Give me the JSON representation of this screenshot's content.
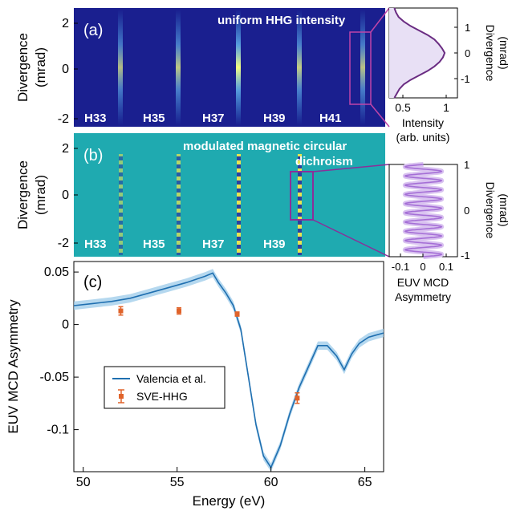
{
  "colors": {
    "spectrum_bg": "#1a1f8f",
    "mcd_bg": "#1faab0",
    "profile_line": "#6a2c82",
    "profile_fill": "#e8e0f5",
    "mcd_profile_line": "#a56fd6",
    "highlight_box": "#c044a8",
    "ref_line": "#1f6fb0",
    "ref_band": "#9ccbea",
    "sve_marker": "#e0632a"
  },
  "panel_a": {
    "tag": "(a)",
    "note": "uniform HHG intensity",
    "ylabel_1": "Divergence",
    "ylabel_2": "(mrad)",
    "yticks": [
      "2",
      "0",
      "-2"
    ],
    "harmonics": [
      "H33",
      "H35",
      "H37",
      "H39",
      "H41"
    ],
    "line_intensity": [
      0.45,
      0.55,
      1.0,
      0.6,
      0.5
    ]
  },
  "panel_a_profile": {
    "xlabel_1": "Intensity",
    "xlabel_2": "(arb. units)",
    "xticks": [
      "0.5",
      "1"
    ],
    "yticks": [
      "1",
      "0",
      "-1"
    ],
    "ylabel_1": "Divergence",
    "ylabel_2": "(mrad)"
  },
  "panel_b": {
    "tag": "(b)",
    "note_1": "modulated magnetic circular",
    "note_2": "dichroism",
    "ylabel_1": "Divergence",
    "ylabel_2": "(mrad)",
    "yticks": [
      "2",
      "0",
      "-2"
    ],
    "harmonics": [
      "H33",
      "H35",
      "H37",
      "H39"
    ]
  },
  "panel_b_profile": {
    "xlabel_1": "EUV MCD",
    "xlabel_2": "Asymmetry",
    "xticks": [
      "-0.1",
      "0",
      "0.1"
    ],
    "yticks": [
      "1",
      "0",
      "-1"
    ],
    "ylabel_1": "Divergence",
    "ylabel_2": "(mrad)"
  },
  "panel_c": {
    "tag": "(c)",
    "xlabel": "Energy (eV)",
    "ylabel": "EUV MCD Asymmetry",
    "xticks": [
      "50",
      "55",
      "60",
      "65"
    ],
    "yticks": [
      "0.05",
      "0",
      "-0.05",
      "-0.1"
    ],
    "legend": [
      "Valencia et al.",
      "SVE-HHG"
    ]
  },
  "chart_data": [
    {
      "type": "heatmap",
      "panel": "a",
      "ylabel": "Divergence (mrad)",
      "ylim": [
        -2.4,
        2.4
      ],
      "categories": [
        "H33",
        "H35",
        "H37",
        "H39",
        "H41"
      ],
      "values": [
        0.45,
        0.55,
        1.0,
        0.6,
        0.5
      ]
    },
    {
      "type": "area",
      "panel": "a-profile",
      "xlabel": "Intensity (arb. units)",
      "ylabel": "Divergence (mrad)",
      "xlim": [
        0.35,
        1.15
      ],
      "ylim": [
        -1.5,
        1.5
      ],
      "x": [
        0.41,
        0.44,
        0.47,
        0.52,
        0.6,
        0.7,
        0.8,
        0.88,
        0.94,
        0.98,
        1.0,
        0.97,
        0.93,
        0.88,
        0.8,
        0.7,
        0.6,
        0.52,
        0.46,
        0.43,
        0.41
      ],
      "y": [
        -1.5,
        -1.35,
        -1.2,
        -1.05,
        -0.9,
        -0.75,
        -0.6,
        -0.45,
        -0.3,
        -0.15,
        0.0,
        0.15,
        0.3,
        0.45,
        0.6,
        0.75,
        0.9,
        1.05,
        1.2,
        1.35,
        1.5
      ]
    },
    {
      "type": "line",
      "panel": "b-profile",
      "xlabel": "EUV MCD Asymmetry",
      "ylabel": "Divergence (mrad)",
      "xlim": [
        -0.15,
        0.15
      ],
      "ylim": [
        -1,
        1
      ],
      "amplitude": 0.08,
      "oscillations": 10
    },
    {
      "type": "line",
      "panel": "c",
      "xlabel": "Energy (eV)",
      "ylabel": "EUV MCD Asymmetry",
      "xlim": [
        49.5,
        66
      ],
      "ylim": [
        -0.14,
        0.06
      ],
      "series": [
        {
          "name": "Valencia et al.",
          "x": [
            49.5,
            50.5,
            51.5,
            52.5,
            53.5,
            54.5,
            55.5,
            56.0,
            56.5,
            56.9,
            57.2,
            57.6,
            58.0,
            58.4,
            58.8,
            59.2,
            59.6,
            60.0,
            60.5,
            61.0,
            61.5,
            62.0,
            62.5,
            63.0,
            63.5,
            63.9,
            64.3,
            64.7,
            65.2,
            65.6,
            66.0
          ],
          "y": [
            0.018,
            0.02,
            0.022,
            0.025,
            0.03,
            0.035,
            0.04,
            0.043,
            0.046,
            0.049,
            0.04,
            0.03,
            0.018,
            -0.005,
            -0.05,
            -0.095,
            -0.125,
            -0.136,
            -0.115,
            -0.085,
            -0.06,
            -0.04,
            -0.02,
            -0.02,
            -0.03,
            -0.043,
            -0.028,
            -0.018,
            -0.012,
            -0.01,
            -0.008
          ]
        },
        {
          "name": "SVE-HHG",
          "x": [
            52.0,
            55.1,
            58.2,
            61.4
          ],
          "y": [
            0.013,
            0.013,
            0.01,
            -0.07
          ],
          "yerr": [
            0.004,
            0.003,
            0.002,
            0.005
          ]
        }
      ]
    }
  ]
}
